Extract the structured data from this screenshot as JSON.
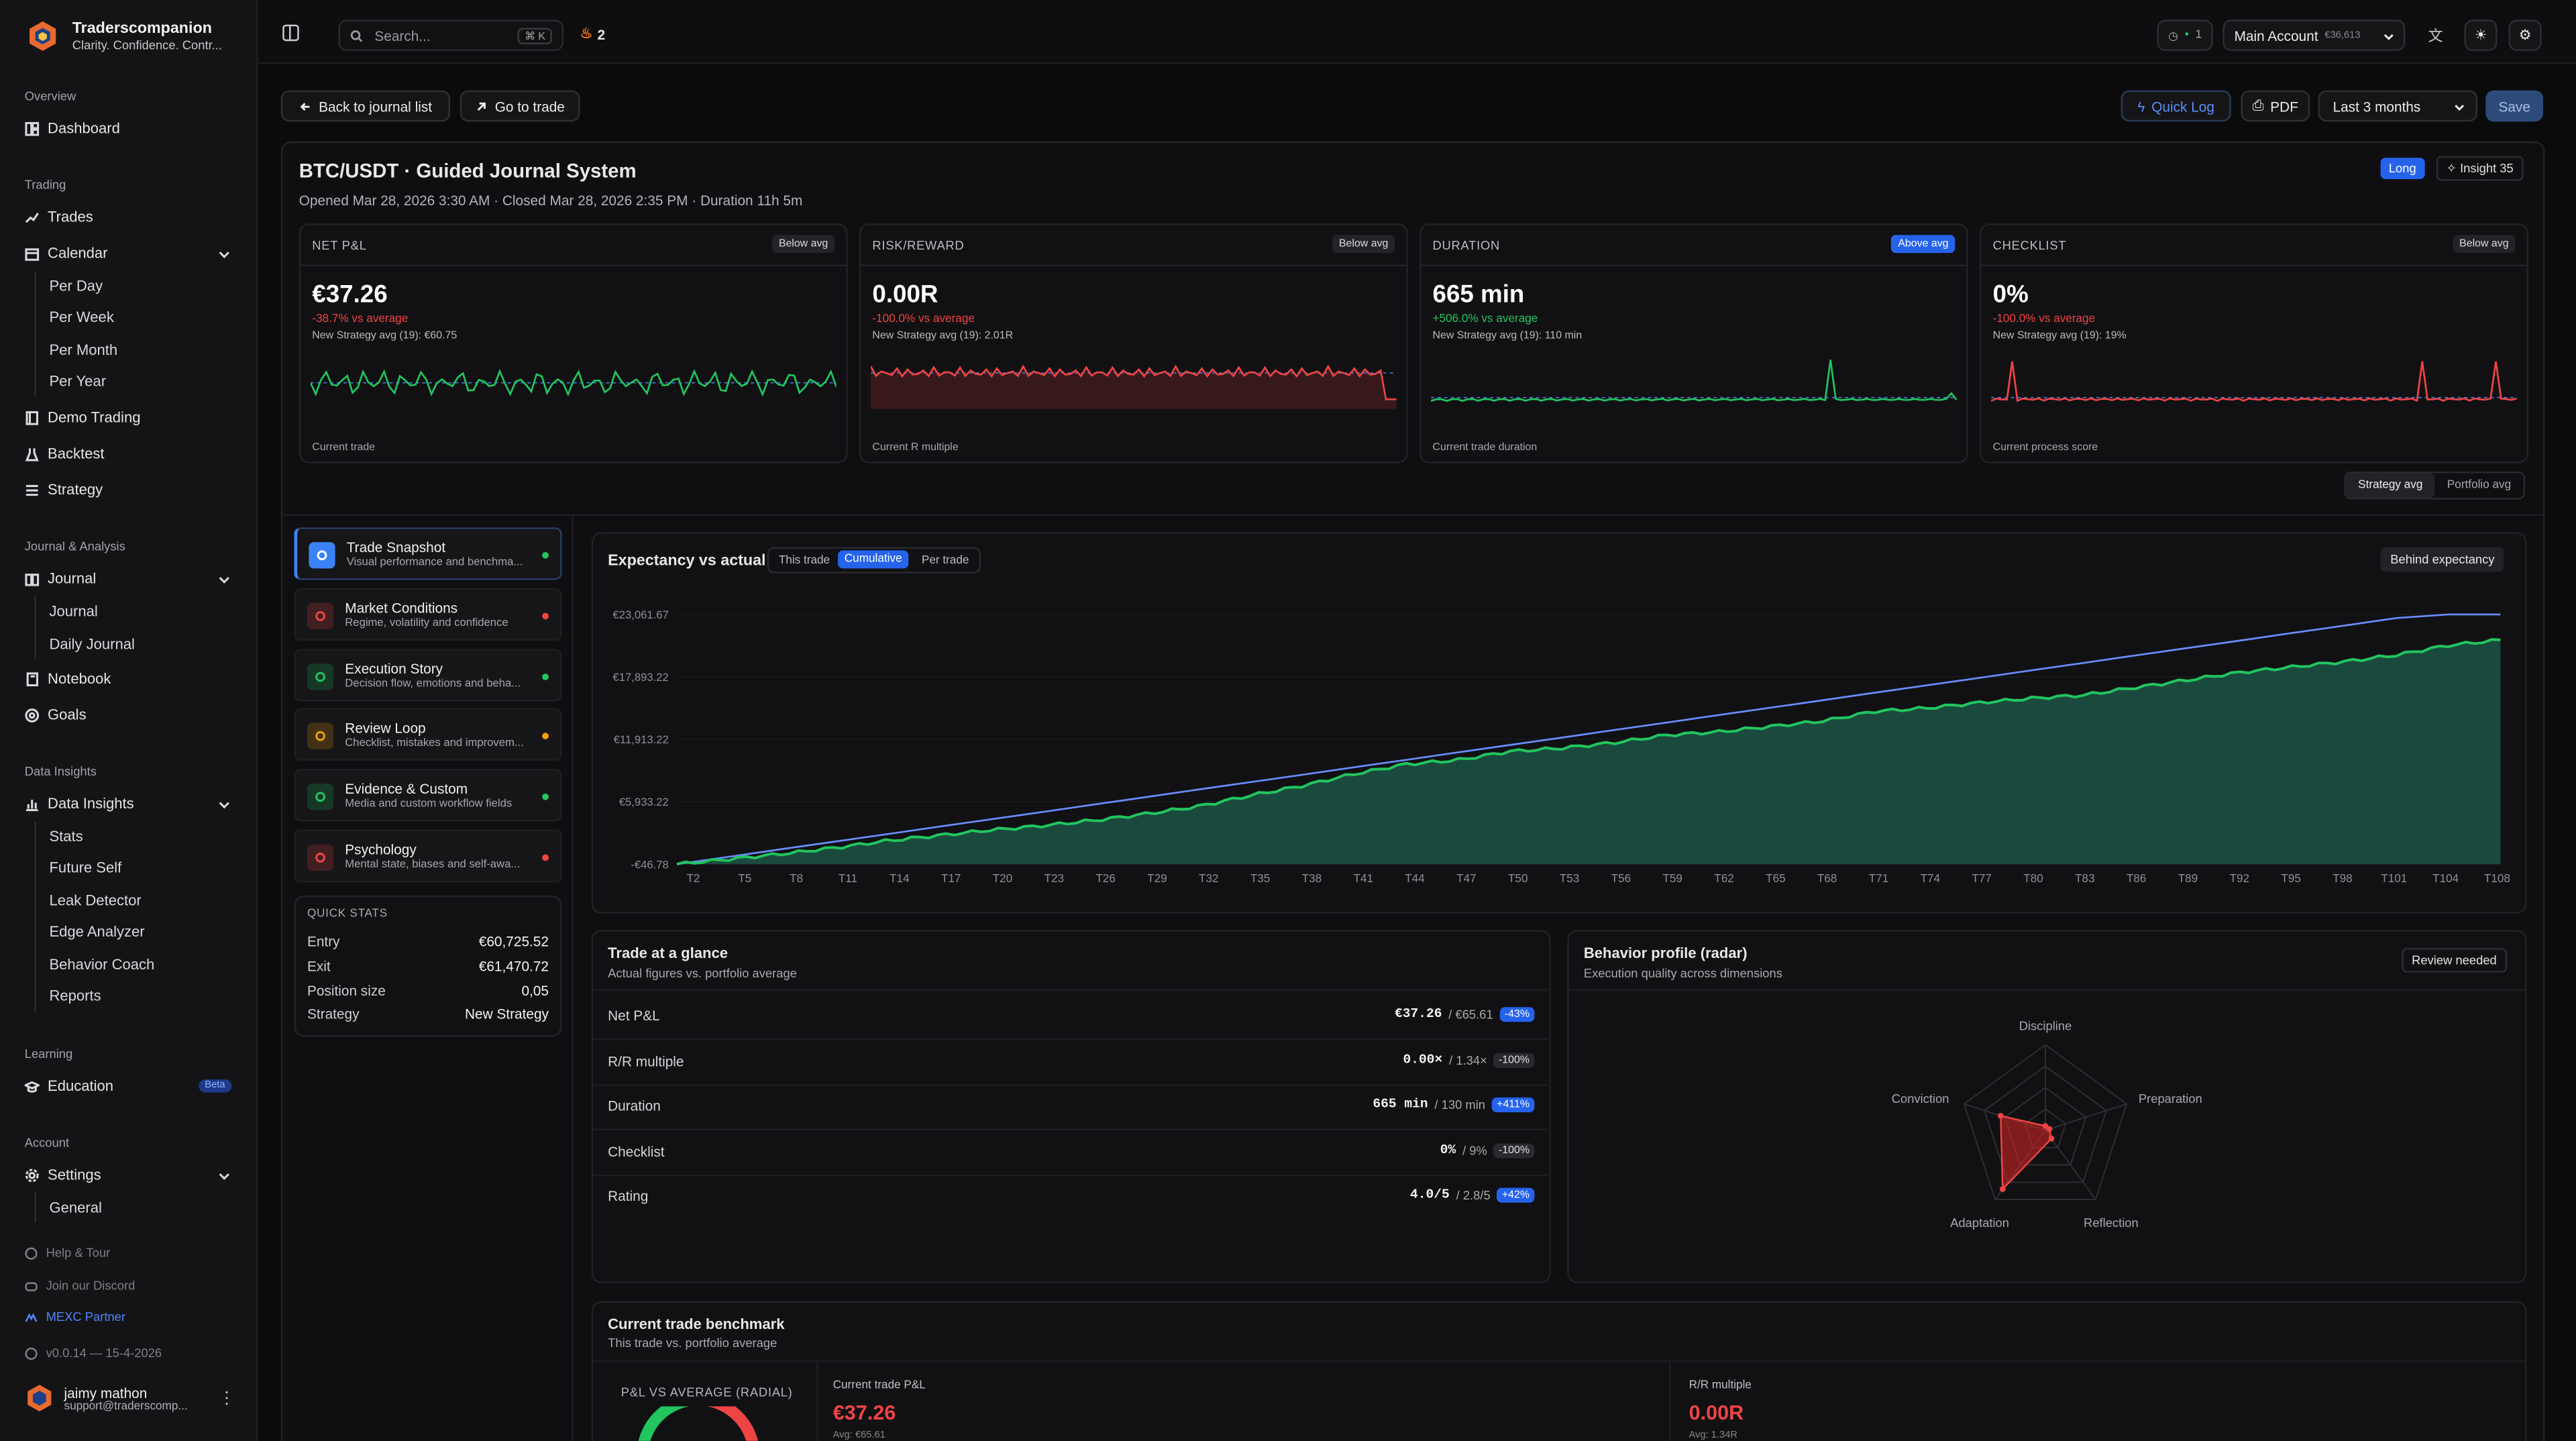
{
  "brand": {
    "name": "Traderscompanion",
    "tagline": "Clarity. Confidence. Contr..."
  },
  "sidebar": {
    "overview": "Overview",
    "dashboard": "Dashboard",
    "trading": "Trading",
    "trades": "Trades",
    "calendar": "Calendar",
    "calendar_items": [
      "Per Day",
      "Per Week",
      "Per Month",
      "Per Year"
    ],
    "demo_trading": "Demo Trading",
    "backtest": "Backtest",
    "strategy": "Strategy",
    "journal_analysis": "Journal & Analysis",
    "journal": "Journal",
    "journal_items": [
      "Journal",
      "Daily Journal"
    ],
    "notebook": "Notebook",
    "goals": "Goals",
    "data_insights_section": "Data Insights",
    "data_insights": "Data Insights",
    "insight_items": [
      "Stats",
      "Future Self",
      "Leak Detector",
      "Edge Analyzer",
      "Behavior Coach",
      "Reports"
    ],
    "learning": "Learning",
    "education": "Education",
    "beta": "Beta",
    "account": "Account",
    "settings": "Settings",
    "settings_items": [
      "General"
    ],
    "help": "Help & Tour",
    "discord": "Join our Discord",
    "mexc": "MEXC Partner",
    "version": "v0.0.14 — 15-4-2026",
    "user_name": "jaimy mathon",
    "user_email": "support@traderscomp..."
  },
  "topbar": {
    "search_placeholder": "Search...",
    "shortcut": "⌘ K",
    "streak": "2",
    "notif": "1",
    "account": "Main Account",
    "account_balance": "€36,613"
  },
  "toolbar": {
    "back": "Back to journal list",
    "goto": "Go to trade",
    "quick_log": "Quick Log",
    "pdf": "PDF",
    "range": "Last 3 months",
    "save": "Save"
  },
  "trade": {
    "title": "BTC/USDT · Guided Journal System",
    "subtitle": "Opened Mar 28, 2026 3:30 AM · Closed Mar 28, 2026 2:35 PM · Duration 11h 5m",
    "side": "Long",
    "insight": "Insight 35"
  },
  "kpis": [
    {
      "label": "NET P&L",
      "badge": "Below avg",
      "value": "€37.26",
      "change": "-38.7% vs average",
      "avg": "New Strategy avg (19): €60.75",
      "foot": "Current trade",
      "color": "#22c55e"
    },
    {
      "label": "RISK/REWARD",
      "badge": "Below avg",
      "value": "0.00R",
      "change": "-100.0% vs average",
      "avg": "New Strategy avg (19): 2.01R",
      "foot": "Current R multiple",
      "color": "#ef4444"
    },
    {
      "label": "DURATION",
      "badge": "Above avg",
      "value": "665 min",
      "change": "+506.0% vs average",
      "avg": "New Strategy avg (19): 110 min",
      "foot": "Current trade duration",
      "color": "#22c55e"
    },
    {
      "label": "CHECKLIST",
      "badge": "Below avg",
      "value": "0%",
      "change": "-100.0% vs average",
      "avg": "New Strategy avg (19): 19%",
      "foot": "Current process score",
      "color": "#ef4444"
    }
  ],
  "avg_toggle": [
    "Strategy avg",
    "Portfolio avg"
  ],
  "sections": [
    {
      "title": "Trade Snapshot",
      "desc": "Visual performance and benchma...",
      "color": "#3b82f6",
      "dot": "#22c55e"
    },
    {
      "title": "Market Conditions",
      "desc": "Regime, volatility and confidence",
      "color": "#ef4444",
      "dot": "#ef4444"
    },
    {
      "title": "Execution Story",
      "desc": "Decision flow, emotions and beha...",
      "color": "#22c55e",
      "dot": "#22c55e"
    },
    {
      "title": "Review Loop",
      "desc": "Checklist, mistakes and improvem...",
      "color": "#f59e0b",
      "dot": "#f59e0b"
    },
    {
      "title": "Evidence & Custom",
      "desc": "Media and custom workflow fields",
      "color": "#22c55e",
      "dot": "#22c55e"
    },
    {
      "title": "Psychology",
      "desc": "Mental state, biases and self-awa...",
      "color": "#ef4444",
      "dot": "#ef4444"
    }
  ],
  "quick_stats": {
    "title": "QUICK STATS",
    "rows": [
      [
        "Entry",
        "€60,725.52"
      ],
      [
        "Exit",
        "€61,470.72"
      ],
      [
        "Position size",
        "0,05"
      ],
      [
        "Strategy",
        "New Strategy"
      ]
    ]
  },
  "expectancy": {
    "title": "Expectancy vs actual",
    "modes": [
      "This trade",
      "Cumulative",
      "Per trade"
    ],
    "status": "Behind expectancy"
  },
  "chart_data": {
    "type": "area",
    "title": "Expectancy vs actual",
    "y_ticks": [
      "€23,061.67",
      "€17,893.22",
      "€11,913.22",
      "€5,933.22",
      "-€46.78"
    ],
    "ylim": [
      -46.78,
      23061.67
    ],
    "x_ticks": [
      "T2",
      "T5",
      "T8",
      "T11",
      "T14",
      "T17",
      "T20",
      "T23",
      "T26",
      "T29",
      "T32",
      "T35",
      "T38",
      "T41",
      "T44",
      "T47",
      "T50",
      "T53",
      "T56",
      "T59",
      "T62",
      "T65",
      "T68",
      "T71",
      "T74",
      "T77",
      "T80",
      "T83",
      "T86",
      "T89",
      "T92",
      "T95",
      "T98",
      "T101",
      "T104",
      "T108"
    ],
    "series": [
      {
        "values": [
          -46.78,
          420,
          900,
          1450,
          2100,
          2600,
          3100,
          3500,
          4000,
          4600,
          5300,
          6300,
          7200,
          8300,
          9200,
          9600,
          10400,
          10700,
          11200,
          11900,
          12200,
          12700,
          13200,
          14100,
          14400,
          14900,
          15300,
          15600,
          16300,
          17000,
          17700,
          18200,
          18700,
          19300,
          20200,
          20700
        ]
      },
      {
        "values": [
          -46.78,
          640,
          1330,
          2020,
          2710,
          3400,
          4090,
          4780,
          5470,
          6160,
          6850,
          7540,
          8230,
          8920,
          9610,
          10300,
          10990,
          11680,
          12370,
          13060,
          13750,
          14440,
          15130,
          15820,
          16510,
          17200,
          17890,
          18580,
          19270,
          19960,
          20650,
          21340,
          22030,
          22720,
          23061.67,
          23061.67
        ]
      }
    ]
  },
  "glance": {
    "title": "Trade at a glance",
    "sub": "Actual figures vs. portfolio average",
    "rows": [
      {
        "k": "Net P&L",
        "v": "€37.26",
        "avg": "/ €65.61",
        "p": "-43%",
        "blue": true
      },
      {
        "k": "R/R multiple",
        "v": "0.00×",
        "avg": "/ 1.34×",
        "p": "-100%",
        "blue": false
      },
      {
        "k": "Duration",
        "v": "665 min",
        "avg": "/ 130 min",
        "p": "+411%",
        "blue": true
      },
      {
        "k": "Checklist",
        "v": "0%",
        "avg": "/ 9%",
        "p": "-100%",
        "blue": false
      },
      {
        "k": "Rating",
        "v": "4.0/5",
        "avg": "/ 2.8/5",
        "p": "+42%",
        "blue": true
      }
    ]
  },
  "behavior": {
    "title": "Behavior profile (radar)",
    "sub": "Execution quality across dimensions",
    "status": "Review needed",
    "axes": [
      "Discipline",
      "Preparation",
      "Reflection",
      "Adaptation",
      "Conviction"
    ],
    "values": [
      0.05,
      0.05,
      0.12,
      0.85,
      0.55
    ]
  },
  "benchmark": {
    "title": "Current trade benchmark",
    "sub": "This trade vs. portfolio average",
    "radial": "P&L VS AVERAGE (RADIAL)",
    "pnl_label": "Current trade P&L",
    "pnl": "€37.26",
    "pnl_avg": "Avg: €65.61",
    "rr_label": "R/R multiple",
    "rr": "0.00R",
    "rr_avg": "Avg: 1.34R"
  }
}
